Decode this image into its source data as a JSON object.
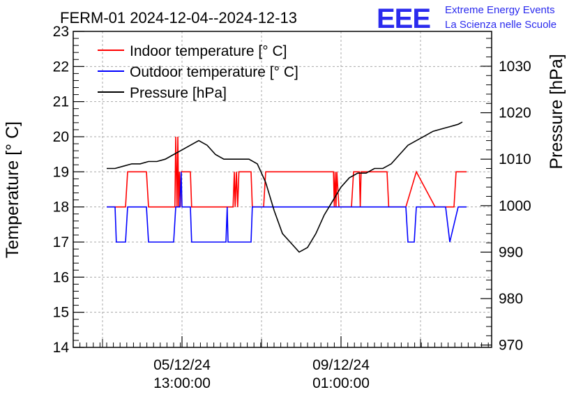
{
  "chart_data": {
    "type": "line",
    "title": "FERM-01 2024-12-04--2024-12-13",
    "logo": {
      "mark": "EEE",
      "line1": "Extreme Energy Events",
      "line2": "La Scienza nelle Scuole"
    },
    "xlabel": "",
    "ylabel_left": "Temperature [° C]",
    "ylabel_right": "Pressure [hPa]",
    "ylim_left": [
      14,
      23
    ],
    "ylim_right": [
      969.5,
      1037.5
    ],
    "xlim": [
      0,
      100
    ],
    "left_ticks": [
      "14",
      "15",
      "16",
      "17",
      "18",
      "19",
      "20",
      "21",
      "22",
      "23"
    ],
    "right_ticks": [
      "970",
      "980",
      "990",
      "1000",
      "1010",
      "1020",
      "1030"
    ],
    "x_ticks": [
      {
        "pos": 26,
        "line1": "05/12/24",
        "line2": "13:00:00"
      },
      {
        "pos": 64,
        "line1": "09/12/24",
        "line2": "01:00:00"
      }
    ],
    "grid": true,
    "legend_position": "top-left",
    "colors": {
      "indoor": "#ff0000",
      "outdoor": "#0000ff",
      "pressure": "#000000"
    },
    "series": [
      {
        "name": "Indoor temperature [° C]",
        "axis": "left",
        "color": "#ff0000",
        "x": [
          8,
          12.5,
          13,
          17.5,
          18,
          24.3,
          24.5,
          24.8,
          25,
          25.2,
          25.4,
          25.6,
          25.8,
          26,
          28,
          28.3,
          38.2,
          38.5,
          38.7,
          39,
          39.3,
          39.6,
          42.5,
          42.8,
          45.5,
          46,
          62.2,
          62.4,
          62.6,
          62.8,
          63,
          63.5,
          66.5,
          67,
          68.4,
          68.6,
          68.8,
          75,
          75.4,
          79.5,
          82,
          86.5,
          89,
          90.5,
          91,
          91.5,
          92,
          94
        ],
        "y": [
          18,
          18,
          19,
          19,
          18,
          18,
          20,
          18,
          20,
          18,
          19,
          18,
          19,
          19,
          19,
          18,
          18,
          19,
          18,
          19,
          18,
          19,
          19,
          18,
          18,
          19,
          19,
          18,
          19,
          18,
          19,
          18,
          18,
          19,
          19,
          18,
          19,
          19,
          18,
          18,
          19,
          18,
          18,
          18,
          18,
          19,
          19,
          19
        ]
      },
      {
        "name": "Outdoor temperature [° C]",
        "axis": "left",
        "color": "#0000ff",
        "x": [
          8,
          10,
          10.3,
          12.5,
          13,
          17.5,
          18,
          24,
          24.5,
          25.5,
          25.8,
          26,
          28,
          28.3,
          36.5,
          36.8,
          37,
          42.5,
          42.8,
          46,
          79.5,
          80,
          81.5,
          82,
          85.5,
          89,
          90,
          92,
          94
        ],
        "y": [
          18,
          18,
          17,
          17,
          18,
          18,
          17,
          17,
          18,
          18,
          19,
          18,
          18,
          17,
          17,
          18,
          17,
          17,
          18,
          18,
          18,
          17,
          17,
          18,
          18,
          18,
          17,
          18,
          18
        ],
        "_note_x_ticks_skip": ""
      },
      {
        "name": "Pressure [hPa]",
        "axis": "right",
        "color": "#000000",
        "x": [
          8,
          10,
          12,
          14,
          16,
          18,
          20,
          22,
          24,
          26,
          28,
          30,
          32,
          34,
          36,
          38,
          40,
          42,
          44,
          46,
          48,
          50,
          52,
          54,
          56,
          58,
          60,
          62,
          64,
          66,
          68,
          70,
          72,
          74,
          76,
          78,
          80,
          82,
          84,
          86,
          88,
          90,
          92,
          93
        ],
        "y": [
          1008,
          1008,
          1008.5,
          1009,
          1009,
          1009.5,
          1009.5,
          1010,
          1011,
          1012,
          1013,
          1014,
          1013,
          1011,
          1010,
          1010,
          1010,
          1010,
          1009,
          1005,
          999,
          994,
          992,
          990,
          991,
          994,
          998,
          1001,
          1004,
          1006,
          1007,
          1007,
          1008,
          1008,
          1009,
          1011,
          1013,
          1014,
          1015,
          1016,
          1016.5,
          1017,
          1017.5,
          1018
        ]
      }
    ]
  }
}
